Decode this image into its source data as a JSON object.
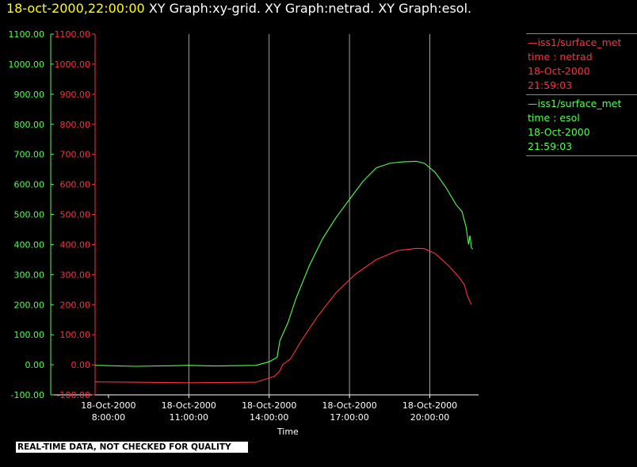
{
  "header": {
    "timestamp": "18-oct-2000,22:00:00",
    "titles": "XY Graph:xy-grid.  XY Graph:netrad.  XY Graph:esol."
  },
  "legend": [
    {
      "line1": "—iss1/surface_met",
      "line2": "time : netrad",
      "line3": "18-Oct-2000",
      "line4": "21:59:03",
      "color": "#ff3040"
    },
    {
      "line1": "—iss1/surface_met",
      "line2": "time : esol",
      "line3": "18-Oct-2000",
      "line4": "21:59:03",
      "color": "#50ff50"
    }
  ],
  "footer": "REAL-TIME DATA, NOT CHECKED FOR QUALITY",
  "chart_data": {
    "type": "line",
    "xlabel": "Time",
    "ylim": [
      -100,
      1100
    ],
    "xlim": [
      7.5,
      21.6
    ],
    "grid": "vertical",
    "yticks": [
      -100,
      0,
      100,
      200,
      300,
      400,
      500,
      600,
      700,
      800,
      900,
      1000,
      1100
    ],
    "ytick_labels": [
      "-100.00",
      "0.00",
      "100.00",
      "200.00",
      "300.00",
      "400.00",
      "500.00",
      "600.00",
      "700.00",
      "800.00",
      "900.00",
      "1000.00",
      "1100.00"
    ],
    "xticks": [
      {
        "x": 8,
        "date": "18-Oct-2000",
        "time": "8:00:00"
      },
      {
        "x": 11,
        "date": "18-Oct-2000",
        "time": "11:00:00"
      },
      {
        "x": 14,
        "date": "18-Oct-2000",
        "time": "14:00:00"
      },
      {
        "x": 17,
        "date": "18-Oct-2000",
        "time": "17:00:00"
      },
      {
        "x": 20,
        "date": "18-Oct-2000",
        "time": "20:00:00"
      }
    ],
    "series": [
      {
        "name": "netrad",
        "color": "#ff3040",
        "x": [
          7.5,
          9,
          11,
          13.5,
          14.2,
          14.4,
          14.5,
          14.8,
          15.2,
          15.8,
          16.5,
          17.2,
          18,
          18.8,
          19.5,
          19.8,
          20.2,
          20.7,
          21.1,
          21.3,
          21.4,
          21.5,
          21.55
        ],
        "y": [
          -57,
          -58,
          -60,
          -58,
          -38,
          -20,
          0,
          20,
          80,
          160,
          240,
          300,
          350,
          380,
          387,
          386,
          370,
          330,
          290,
          265,
          230,
          210,
          200
        ]
      },
      {
        "name": "esol",
        "color": "#50ff50",
        "x": [
          7.5,
          9,
          10.5,
          11,
          12,
          13.5,
          14,
          14.3,
          14.4,
          14.7,
          15,
          15.5,
          16,
          16.5,
          17,
          17.5,
          18,
          18.5,
          19,
          19.5,
          19.8,
          20.2,
          20.6,
          21.0,
          21.2,
          21.35,
          21.45,
          21.5,
          21.55,
          21.6
        ],
        "y": [
          -2,
          -5,
          -3,
          -2,
          -4,
          -2,
          10,
          25,
          80,
          140,
          220,
          330,
          420,
          490,
          550,
          610,
          655,
          670,
          675,
          677,
          670,
          640,
          590,
          530,
          510,
          460,
          400,
          430,
          390,
          385
        ]
      }
    ]
  }
}
